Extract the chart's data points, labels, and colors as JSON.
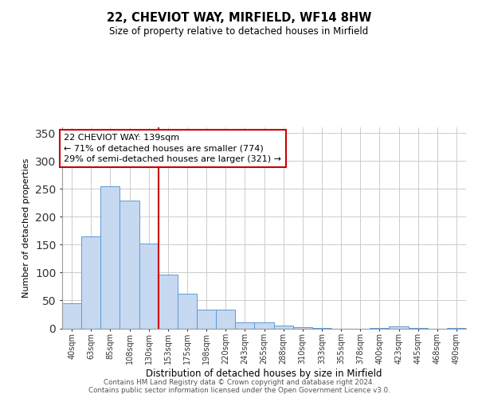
{
  "title": "22, CHEVIOT WAY, MIRFIELD, WF14 8HW",
  "subtitle": "Size of property relative to detached houses in Mirfield",
  "xlabel": "Distribution of detached houses by size in Mirfield",
  "ylabel": "Number of detached properties",
  "bin_labels": [
    "40sqm",
    "63sqm",
    "85sqm",
    "108sqm",
    "130sqm",
    "153sqm",
    "175sqm",
    "198sqm",
    "220sqm",
    "243sqm",
    "265sqm",
    "288sqm",
    "310sqm",
    "333sqm",
    "355sqm",
    "378sqm",
    "400sqm",
    "423sqm",
    "445sqm",
    "468sqm",
    "490sqm"
  ],
  "bar_heights": [
    45,
    165,
    254,
    229,
    152,
    96,
    62,
    34,
    33,
    11,
    10,
    5,
    2,
    1,
    0,
    0,
    1,
    4,
    1,
    0,
    1
  ],
  "bar_color": "#c6d9f1",
  "bar_edge_color": "#5b9bd5",
  "highlight_line_color": "#cc0000",
  "annotation_line1": "22 CHEVIOT WAY: 139sqm",
  "annotation_line2": "← 71% of detached houses are smaller (774)",
  "annotation_line3": "29% of semi-detached houses are larger (321) →",
  "annotation_box_color": "#ffffff",
  "annotation_box_edge_color": "#cc0000",
  "ylim": [
    0,
    360
  ],
  "yticks": [
    0,
    50,
    100,
    150,
    200,
    250,
    300,
    350
  ],
  "footer_line1": "Contains HM Land Registry data © Crown copyright and database right 2024.",
  "footer_line2": "Contains public sector information licensed under the Open Government Licence v3.0.",
  "background_color": "#ffffff",
  "grid_color": "#cccccc"
}
